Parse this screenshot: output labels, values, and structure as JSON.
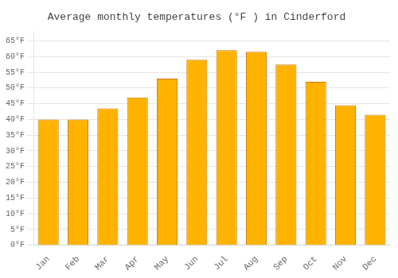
{
  "chart_data": {
    "type": "bar",
    "title": "Average monthly temperatures (°F ) in Cinderford",
    "categories": [
      "Jan",
      "Feb",
      "Mar",
      "Apr",
      "May",
      "Jun",
      "Jul",
      "Aug",
      "Sep",
      "Oct",
      "Nov",
      "Dec"
    ],
    "values": [
      40.0,
      40.0,
      43.5,
      47.0,
      53.0,
      59.0,
      62.0,
      61.5,
      57.5,
      52.0,
      44.5,
      41.5
    ],
    "color": "#FFB300",
    "ylim": [
      0,
      68
    ],
    "yticks": [
      {
        "value": 0,
        "label": "0°F"
      },
      {
        "value": 5,
        "label": "5°F"
      },
      {
        "value": 10,
        "label": "10°F"
      },
      {
        "value": 15,
        "label": "15°F"
      },
      {
        "value": 20,
        "label": "20°F"
      },
      {
        "value": 25,
        "label": "25°F"
      },
      {
        "value": 30,
        "label": "30°F"
      },
      {
        "value": 35,
        "label": "35°F"
      },
      {
        "value": 40,
        "label": "40°F"
      },
      {
        "value": 45,
        "label": "45°F"
      },
      {
        "value": 50,
        "label": "50°F"
      },
      {
        "value": 55,
        "label": "55°F"
      },
      {
        "value": 60,
        "label": "60°F"
      },
      {
        "value": 65,
        "label": "65°F"
      }
    ],
    "grid": true
  }
}
